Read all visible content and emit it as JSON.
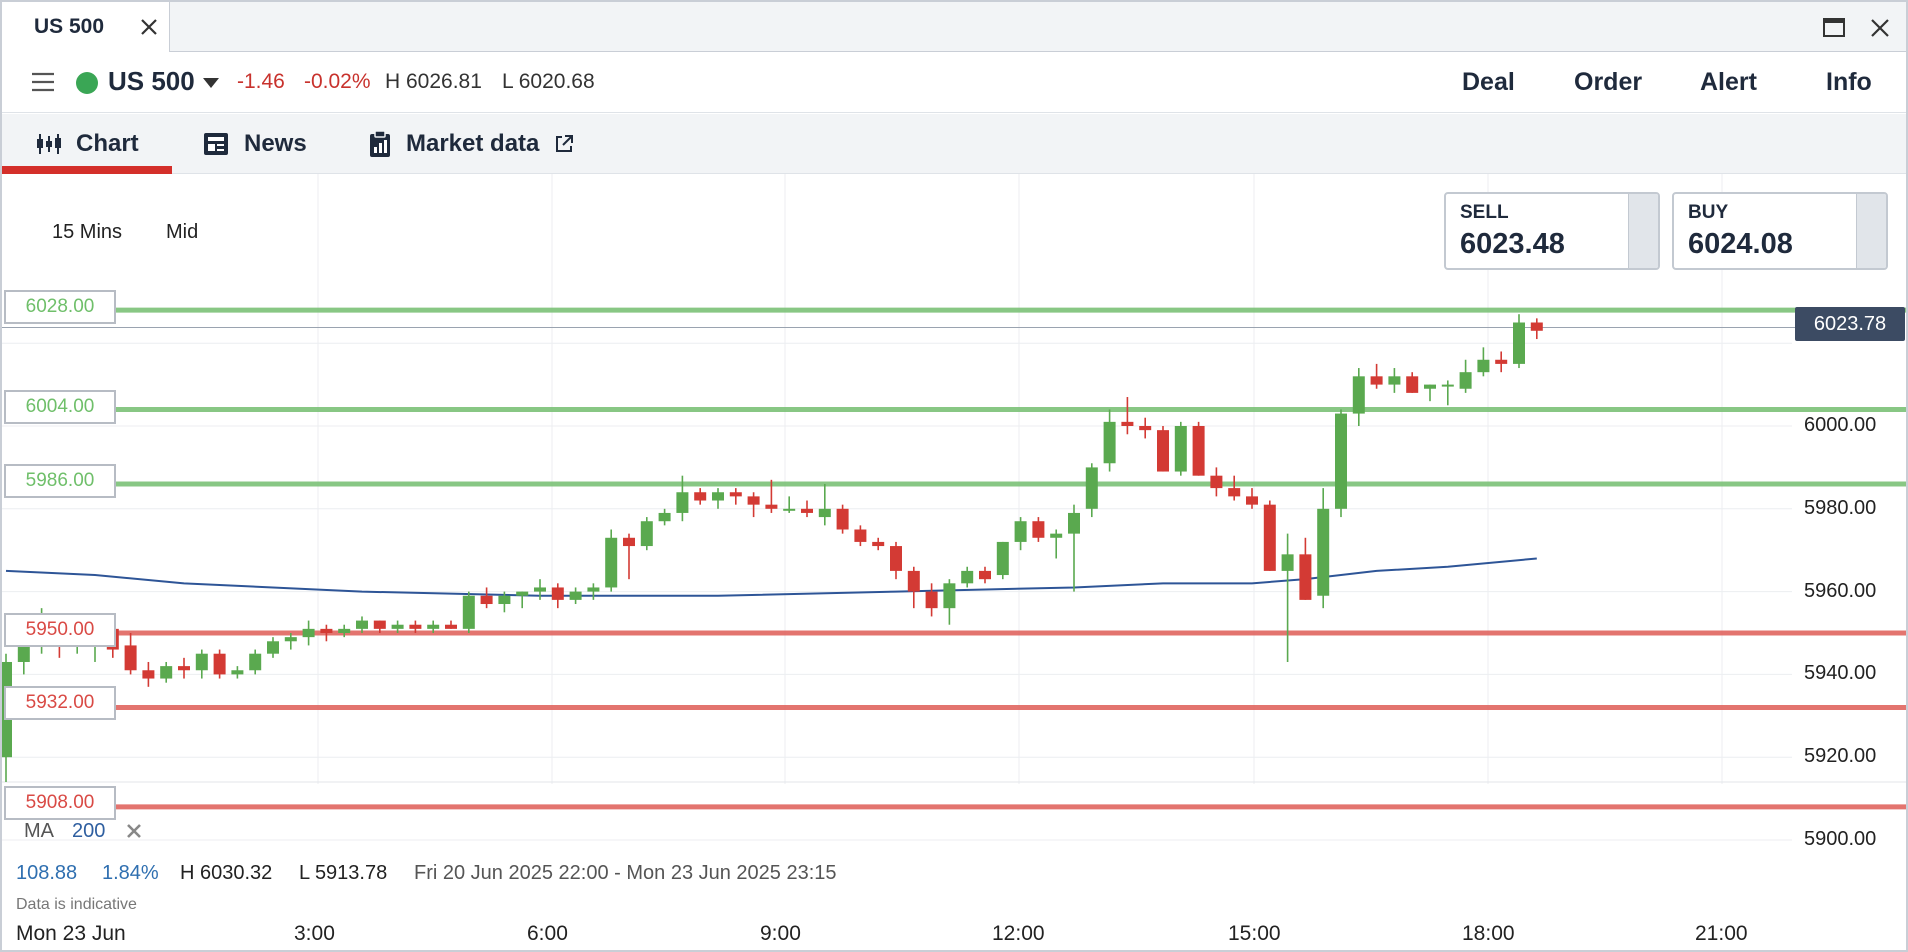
{
  "window": {
    "tab_title": "US 500"
  },
  "header": {
    "instrument": "US 500",
    "status_color": "#3aa655",
    "change": "-1.46",
    "change_pct": "-0.02%",
    "high": "H 6026.81",
    "low": "L 6020.68",
    "actions": [
      "Deal",
      "Order",
      "Alert",
      "Info"
    ]
  },
  "tabs": {
    "chart": "Chart",
    "news": "News",
    "market_data": "Market data"
  },
  "controls": {
    "interval": "15 Mins",
    "price_type": "Mid"
  },
  "quote": {
    "sell_label": "SELL",
    "sell_price": "6023.48",
    "buy_label": "BUY",
    "buy_price": "6024.08"
  },
  "levels": {
    "support_color": "#e06560",
    "resistance_color": "#7cc177",
    "resistance": [
      "6028.00",
      "6004.00",
      "5986.00"
    ],
    "support": [
      "5950.00",
      "5932.00",
      "5908.00"
    ]
  },
  "last_price": "6023.78",
  "indicator": {
    "name": "MA",
    "period": "200"
  },
  "stats": {
    "change": "108.88",
    "change_pct": "1.84%",
    "high": "H 6030.32",
    "low": "L 5913.78",
    "range": "Fri 20 Jun 2025 22:00 - Mon 23 Jun 2025 23:15"
  },
  "disclaimer": "Data is indicative",
  "chart_data": {
    "type": "candlestick",
    "ylim": [
      5895,
      6040
    ],
    "y_ticks": [
      "6000.00",
      "5980.00",
      "5960.00",
      "5940.00",
      "5920.00",
      "5900.00"
    ],
    "x_ticks": [
      "Mon 23 Jun",
      "3:00",
      "6:00",
      "9:00",
      "12:00",
      "15:00",
      "18:00",
      "21:00"
    ],
    "up_color": "#5aa94f",
    "down_color": "#d33a34",
    "ma_color": "#2e5597",
    "ohlc": [
      [
        5920,
        5945,
        5914,
        5943
      ],
      [
        5943,
        5948,
        5940,
        5947
      ],
      [
        5947,
        5956,
        5945,
        5950
      ],
      [
        5950,
        5952,
        5944,
        5947
      ],
      [
        5947,
        5950,
        5945,
        5948
      ],
      [
        5948,
        5952,
        5943,
        5951
      ],
      [
        5951,
        5952,
        5944,
        5946
      ],
      [
        5947,
        5950,
        5940,
        5941
      ],
      [
        5941,
        5943,
        5937,
        5939
      ],
      [
        5939,
        5943,
        5938,
        5942
      ],
      [
        5942,
        5944,
        5939,
        5941
      ],
      [
        5941,
        5946,
        5939,
        5945
      ],
      [
        5945,
        5946,
        5939,
        5940
      ],
      [
        5940,
        5942,
        5939,
        5941
      ],
      [
        5941,
        5946,
        5940,
        5945
      ],
      [
        5945,
        5949,
        5944,
        5948
      ],
      [
        5948,
        5950,
        5946,
        5949
      ],
      [
        5949,
        5953,
        5947,
        5951
      ],
      [
        5951,
        5952,
        5948,
        5950
      ],
      [
        5950,
        5952,
        5949,
        5951
      ],
      [
        5951,
        5954,
        5950,
        5953
      ],
      [
        5953,
        5953,
        5950,
        5951
      ],
      [
        5951,
        5953,
        5950,
        5952
      ],
      [
        5952,
        5953,
        5950,
        5951
      ],
      [
        5951,
        5953,
        5950,
        5952
      ],
      [
        5952,
        5953,
        5951,
        5951
      ],
      [
        5951,
        5960,
        5950,
        5959
      ],
      [
        5959,
        5961,
        5956,
        5957
      ],
      [
        5957,
        5960,
        5955,
        5959
      ],
      [
        5959,
        5960,
        5956,
        5960
      ],
      [
        5960,
        5963,
        5958,
        5961
      ],
      [
        5961,
        5962,
        5956,
        5958
      ],
      [
        5958,
        5961,
        5957,
        5960
      ],
      [
        5960,
        5962,
        5958,
        5961
      ],
      [
        5961,
        5975,
        5960,
        5973
      ],
      [
        5973,
        5974,
        5963,
        5971
      ],
      [
        5971,
        5978,
        5970,
        5977
      ],
      [
        5977,
        5980,
        5976,
        5979
      ],
      [
        5979,
        5988,
        5977,
        5984
      ],
      [
        5984,
        5985,
        5981,
        5982
      ],
      [
        5982,
        5985,
        5980,
        5984
      ],
      [
        5984,
        5985,
        5981,
        5983
      ],
      [
        5983,
        5984,
        5978,
        5981
      ],
      [
        5981,
        5987,
        5979,
        5980
      ],
      [
        5980,
        5983,
        5979,
        5980
      ],
      [
        5980,
        5982,
        5978,
        5979
      ],
      [
        5978,
        5986,
        5976,
        5980
      ],
      [
        5980,
        5981,
        5974,
        5975
      ],
      [
        5975,
        5976,
        5971,
        5972
      ],
      [
        5972,
        5973,
        5970,
        5971
      ],
      [
        5971,
        5972,
        5963,
        5965
      ],
      [
        5965,
        5966,
        5956,
        5960
      ],
      [
        5960,
        5962,
        5954,
        5956
      ],
      [
        5956,
        5963,
        5952,
        5962
      ],
      [
        5962,
        5966,
        5961,
        5965
      ],
      [
        5965,
        5966,
        5962,
        5963
      ],
      [
        5964,
        5972,
        5963,
        5972
      ],
      [
        5972,
        5978,
        5970,
        5977
      ],
      [
        5977,
        5978,
        5972,
        5973
      ],
      [
        5973,
        5975,
        5968,
        5974
      ],
      [
        5974,
        5981,
        5960,
        5979
      ],
      [
        5980,
        5991,
        5978,
        5990
      ],
      [
        5991,
        6004,
        5989,
        6001
      ],
      [
        6001,
        6007,
        5998,
        6000
      ],
      [
        6000,
        6002,
        5997,
        5999
      ],
      [
        5999,
        6000,
        5989,
        5989
      ],
      [
        5989,
        6001,
        5988,
        6000
      ],
      [
        6000,
        6001,
        5988,
        5988
      ],
      [
        5988,
        5990,
        5983,
        5985
      ],
      [
        5985,
        5988,
        5982,
        5983
      ],
      [
        5983,
        5985,
        5980,
        5981
      ],
      [
        5981,
        5982,
        5965,
        5965
      ],
      [
        5965,
        5974,
        5943,
        5969
      ],
      [
        5969,
        5973,
        5958,
        5958
      ],
      [
        5959,
        5985,
        5956,
        5980
      ],
      [
        5980,
        6004,
        5978,
        6003
      ],
      [
        6003,
        6014,
        6000,
        6012
      ],
      [
        6012,
        6015,
        6009,
        6010
      ],
      [
        6010,
        6014,
        6008,
        6012
      ],
      [
        6012,
        6013,
        6008,
        6008
      ],
      [
        6009,
        6010,
        6006,
        6010
      ],
      [
        6010,
        6011,
        6005,
        6010
      ],
      [
        6009,
        6016,
        6008,
        6013
      ],
      [
        6013,
        6019,
        6012,
        6016
      ],
      [
        6016,
        6018,
        6013,
        6015
      ],
      [
        6015,
        6027,
        6014,
        6025
      ],
      [
        6025,
        6026,
        6021,
        6023
      ]
    ],
    "ma_200": [
      [
        0,
        5965
      ],
      [
        5,
        5964
      ],
      [
        10,
        5962
      ],
      [
        20,
        5960
      ],
      [
        30,
        5959
      ],
      [
        40,
        5959
      ],
      [
        50,
        5960
      ],
      [
        60,
        5961
      ],
      [
        65,
        5962
      ],
      [
        70,
        5962
      ],
      [
        73,
        5963
      ],
      [
        77,
        5965
      ],
      [
        81,
        5966
      ],
      [
        86,
        5968
      ]
    ]
  }
}
